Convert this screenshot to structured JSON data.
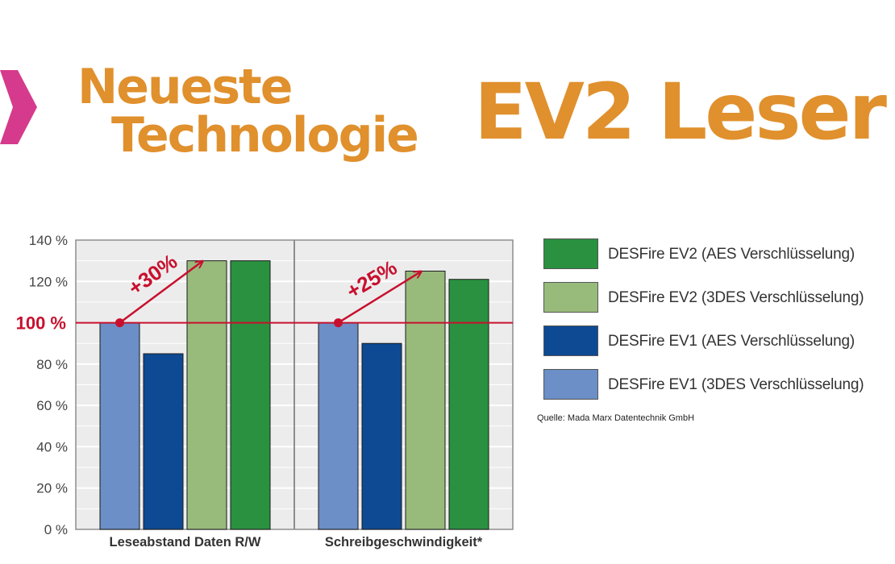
{
  "header": {
    "headline_line1": "Neueste",
    "headline_line2": "Technologie",
    "product": "EV2 Leser",
    "accent_color": "#e0902d",
    "chevron_color": "#d63a8c"
  },
  "chart_data": {
    "type": "bar",
    "categories": [
      "Leseabstand Daten R/W",
      "Schreibgeschwindigkeit*"
    ],
    "series": [
      {
        "name": "DESFire EV1 (3DES Verschlüsselung)",
        "color": "#6b8fc6",
        "values": [
          100,
          100
        ]
      },
      {
        "name": "DESFire EV1 (AES Verschlüsselung)",
        "color": "#0d4a93",
        "values": [
          85,
          90
        ]
      },
      {
        "name": "DESFire EV2 (3DES Verschlüsselung)",
        "color": "#98bb7c",
        "values": [
          130,
          125
        ]
      },
      {
        "name": "DESFire EV2 (AES Verschlüsselung)",
        "color": "#2a9140",
        "values": [
          130,
          121
        ]
      }
    ],
    "ylim": [
      0,
      140
    ],
    "yticks": [
      0,
      20,
      40,
      60,
      80,
      100,
      120,
      140
    ],
    "ytick_labels": [
      "0 %",
      "20 %",
      "40 %",
      "60 %",
      "80 %",
      "100 %",
      "120 %",
      "140 %"
    ],
    "grid": true,
    "reference_line": {
      "value": 100,
      "label": "100 %",
      "color": "#c8102e"
    },
    "annotations": [
      {
        "text": "+30%",
        "category": 0,
        "from": 100,
        "to": 130
      },
      {
        "text": "+25%",
        "category": 1,
        "from": 100,
        "to": 125
      }
    ],
    "legend_position": "right",
    "legend_order": [
      3,
      2,
      1,
      0
    ]
  },
  "source": "Quelle: Mada Marx Datentechnik GmbH"
}
